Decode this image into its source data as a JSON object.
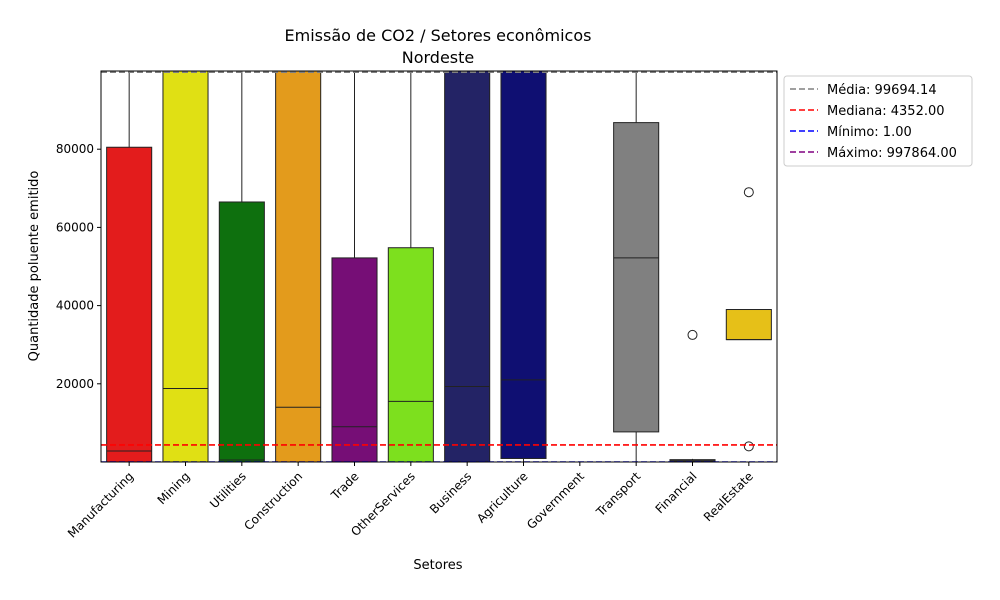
{
  "chart_data": {
    "type": "box",
    "title": "Emissão de CO2 / Setores econômicos",
    "subtitle": "Nordeste",
    "xlabel": "Setores",
    "ylabel": "Quantidade poluente emitido",
    "ylim": [
      0,
      100000
    ],
    "yticks": [
      20000,
      40000,
      60000,
      80000
    ],
    "ytick_labels": [
      "20000",
      "40000",
      "60000",
      "80000"
    ],
    "categories": [
      "Manufacturing",
      "Mining",
      "Utilities",
      "Construction",
      "Trade",
      "OtherServices",
      "Business",
      "Agriculture",
      "Government",
      "Transport",
      "Financial",
      "RealEstate"
    ],
    "boxes": [
      {
        "category": "Manufacturing",
        "color": "#e31c1c",
        "q1": 0,
        "median": 2800,
        "q3": 80500,
        "whisker_low": 0,
        "whisker_high": 100000,
        "outliers": []
      },
      {
        "category": "Mining",
        "color": "#e0e014",
        "q1": 0,
        "median": 18800,
        "q3": 100000,
        "whisker_low": 0,
        "whisker_high": 100000,
        "outliers": []
      },
      {
        "category": "Utilities",
        "color": "#0e700e",
        "q1": 0,
        "median": 500,
        "q3": 66500,
        "whisker_low": 0,
        "whisker_high": 100000,
        "outliers": []
      },
      {
        "category": "Construction",
        "color": "#e39b1c",
        "q1": 0,
        "median": 14000,
        "q3": 100000,
        "whisker_low": 0,
        "whisker_high": 100000,
        "outliers": []
      },
      {
        "category": "Trade",
        "color": "#760e76",
        "q1": 0,
        "median": 9000,
        "q3": 52200,
        "whisker_low": 0,
        "whisker_high": 100000,
        "outliers": []
      },
      {
        "category": "OtherServices",
        "color": "#7de01e",
        "q1": 0,
        "median": 15500,
        "q3": 54800,
        "whisker_low": 0,
        "whisker_high": 100000,
        "outliers": []
      },
      {
        "category": "Business",
        "color": "#232365",
        "q1": 0,
        "median": 19300,
        "q3": 100000,
        "whisker_low": 0,
        "whisker_high": 100000,
        "outliers": []
      },
      {
        "category": "Agriculture",
        "color": "#0f0f72",
        "q1": 900,
        "median": 21000,
        "q3": 100000,
        "whisker_low": 0,
        "whisker_high": 100000,
        "outliers": []
      },
      {
        "category": "Government",
        "color": "#4a4a4a",
        "q1": 0,
        "median": 0,
        "q3": 0,
        "whisker_low": 0,
        "whisker_high": 0,
        "outliers": []
      },
      {
        "category": "Transport",
        "color": "#808080",
        "q1": 7700,
        "median": 52200,
        "q3": 86800,
        "whisker_low": 0,
        "whisker_high": 100000,
        "outliers": []
      },
      {
        "category": "Financial",
        "color": "#555555",
        "q1": 0,
        "median": 300,
        "q3": 600,
        "whisker_low": 0,
        "whisker_high": 800,
        "outliers": [
          32500
        ]
      },
      {
        "category": "RealEstate",
        "color": "#e6c018",
        "q1": 31300,
        "median": 31300,
        "q3": 39000,
        "whisker_low": 31300,
        "whisker_high": 39000,
        "outliers": [
          69000,
          4000
        ]
      }
    ],
    "hlines": [
      {
        "label": "Média: 99694.14",
        "value": 99694.14,
        "color": "#808080"
      },
      {
        "label": "Mediana: 4352.00",
        "value": 4352.0,
        "color": "#ff0000"
      },
      {
        "label": "Mínimo: 1.00",
        "value": 1.0,
        "color": "#0000ff"
      },
      {
        "label": "Máximo: 997864.00",
        "value": 997864.0,
        "color": "#800080"
      }
    ],
    "legend_position": "outside-top-right",
    "grid": false
  }
}
